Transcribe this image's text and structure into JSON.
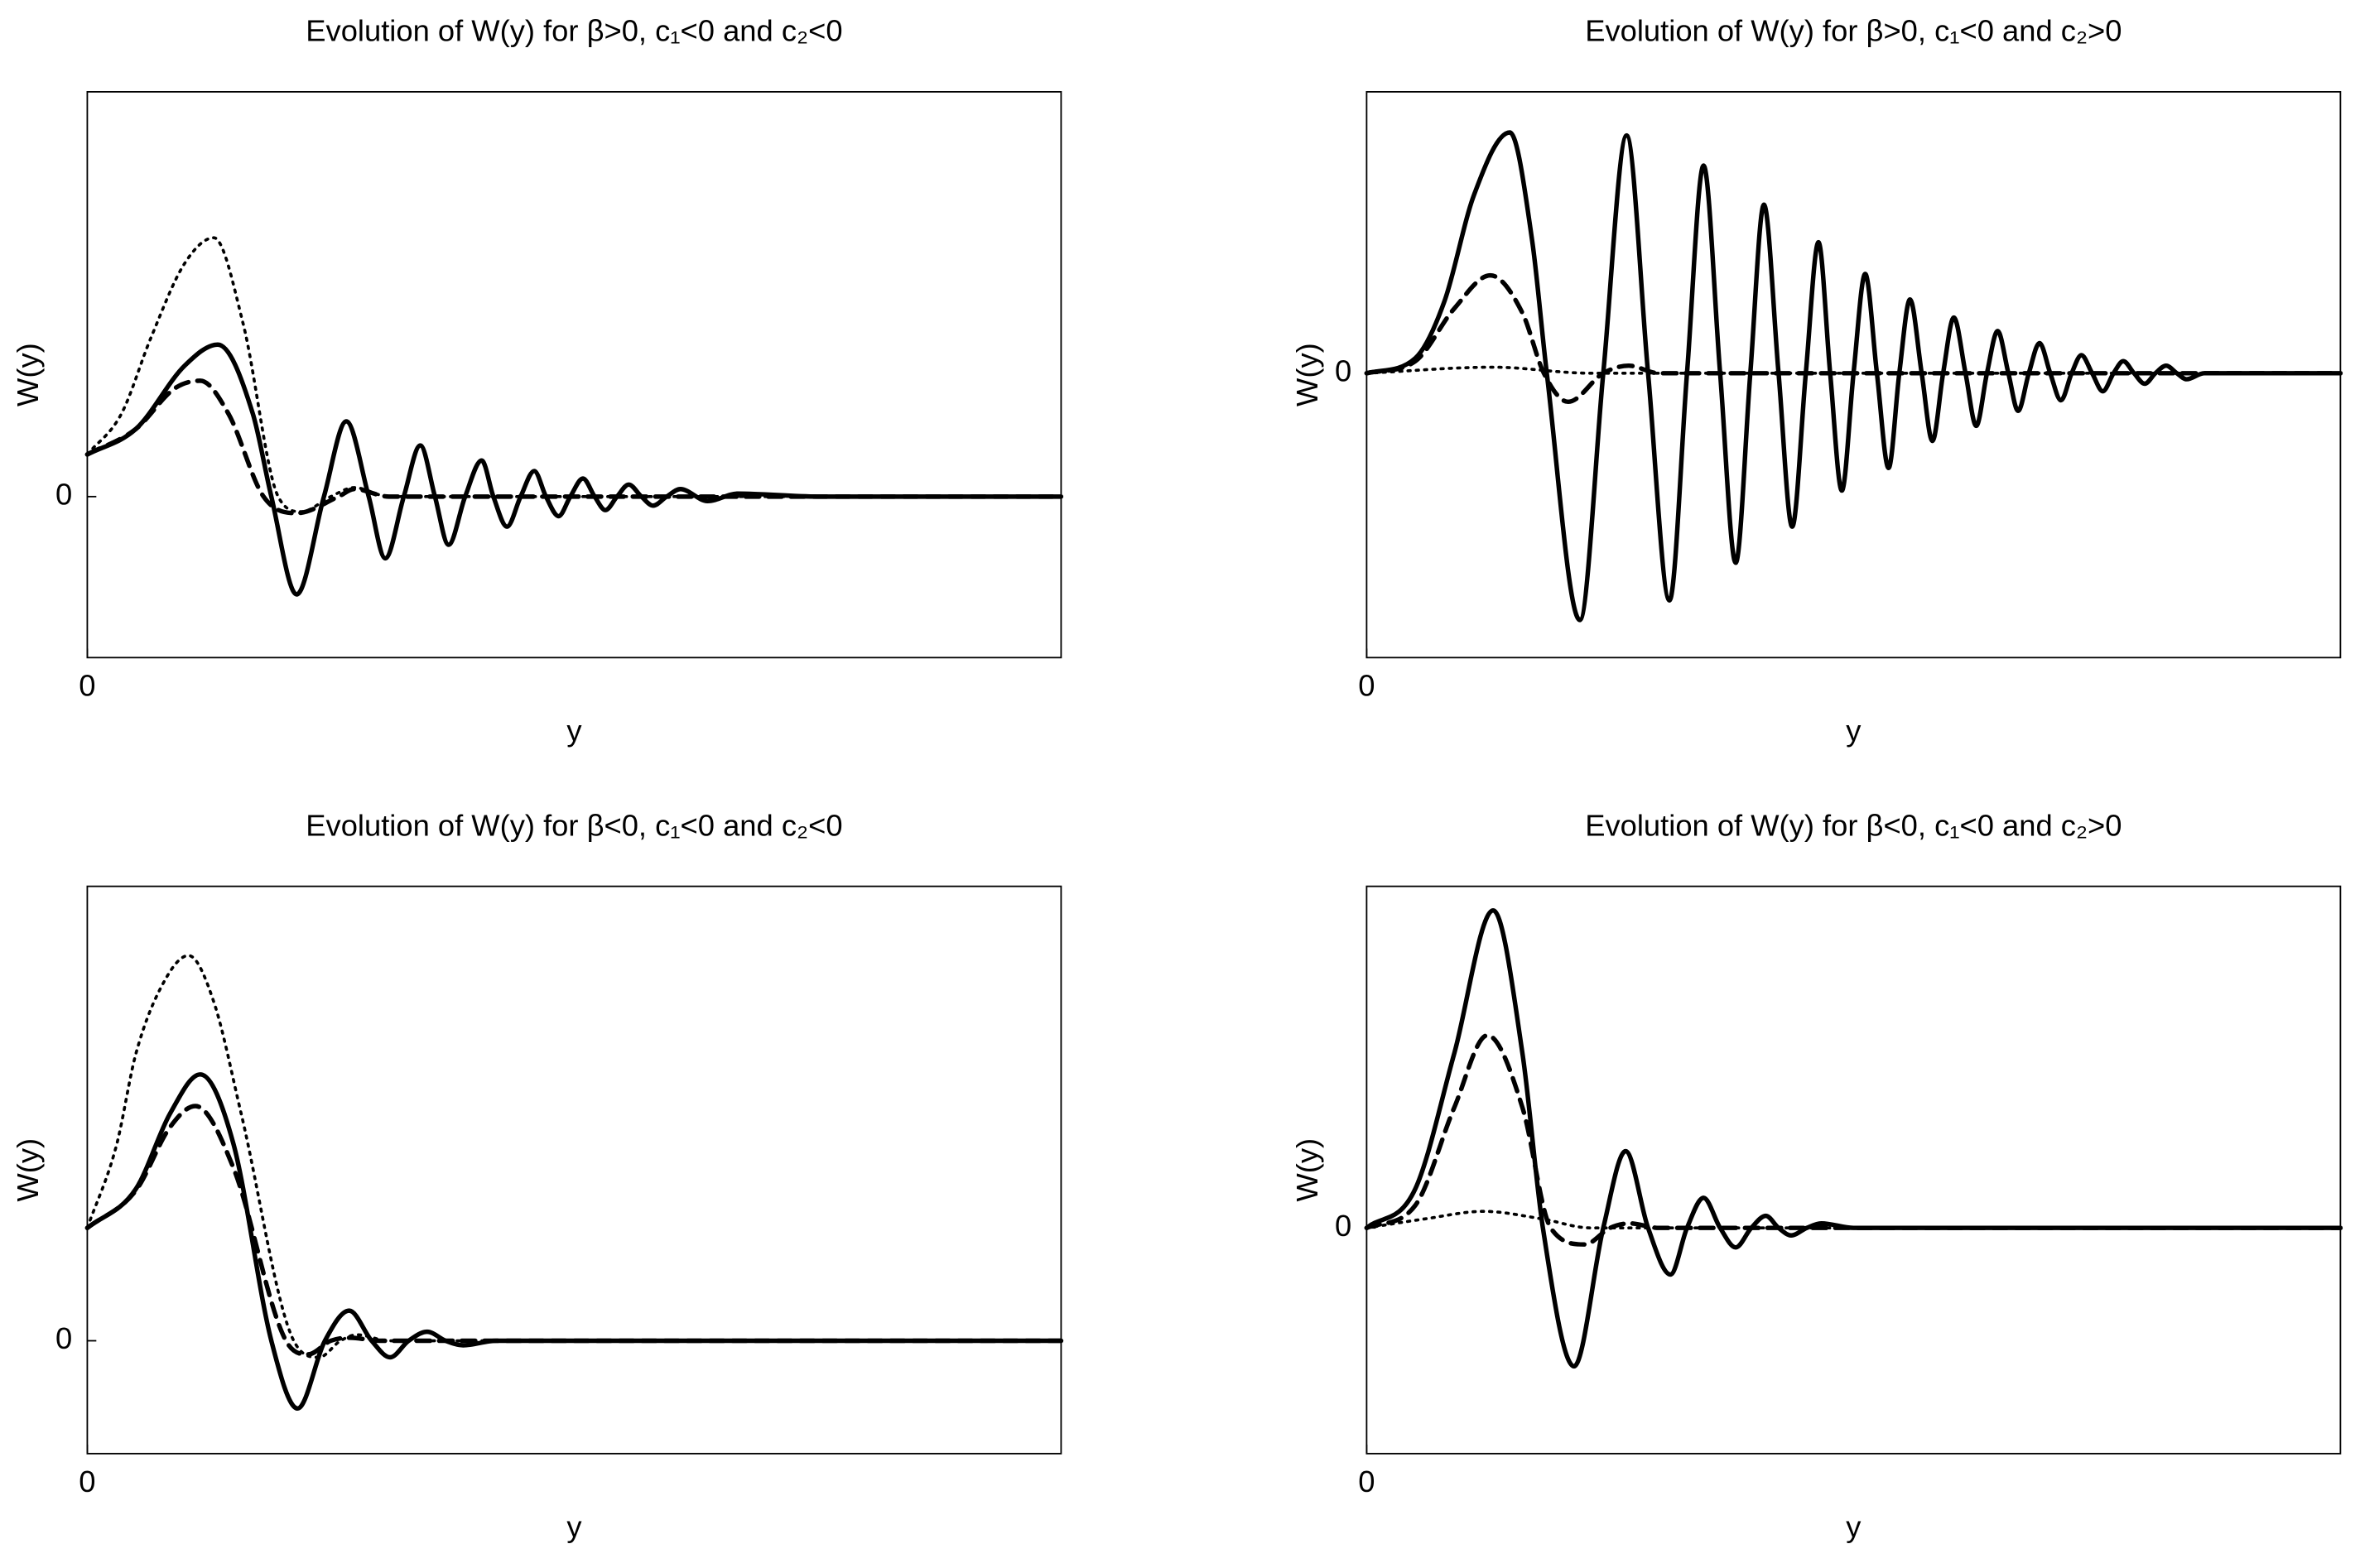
{
  "chart_data": [
    {
      "type": "line",
      "title": "Evolution of W(y) for β>0, c₁<0 and c₂<0",
      "x_label": "y",
      "y_label": "W(y)",
      "xlim": [
        0,
        10
      ],
      "xticks": [
        0
      ],
      "ylim": [
        -1.07,
        2.69
      ],
      "yticks": [
        0
      ],
      "series": [
        {
          "color": "#000000",
          "style": "solid",
          "x": [
            0,
            0.5,
            1.0,
            1.34,
            1.7,
            1.89,
            2.15,
            2.43,
            2.66,
            2.89,
            3.06,
            3.25,
            3.42,
            3.57,
            3.71,
            3.88,
            4.05,
            4.17,
            4.31,
            4.45,
            4.59,
            4.71,
            4.84,
            4.96,
            5.09,
            5.21,
            5.32,
            5.44,
            5.56,
            5.69,
            5.81,
            5.95,
            6.09,
            6.37,
            6.68,
            7.5,
            10
          ],
          "values": [
            0.28,
            0.45,
            0.87,
            1.01,
            0.55,
            0,
            -0.65,
            0,
            0.5,
            0,
            -0.41,
            0,
            0.34,
            0,
            -0.32,
            0,
            0.24,
            0,
            -0.2,
            0,
            0.17,
            0,
            -0.13,
            0,
            0.12,
            0,
            -0.09,
            0,
            0.08,
            0,
            -0.06,
            0,
            0.05,
            -0.03,
            0.02,
            0,
            0
          ]
        },
        {
          "color": "#000000",
          "style": "dashed",
          "x": [
            0,
            0.5,
            0.9,
            1.16,
            1.45,
            1.81,
            2.15,
            2.58,
            2.74,
            3.1,
            10
          ],
          "values": [
            0.28,
            0.45,
            0.72,
            0.77,
            0.55,
            0,
            -0.11,
            0,
            0.05,
            0,
            0
          ]
        },
        {
          "color": "#000000",
          "style": "dotted",
          "x": [
            0,
            0.35,
            0.65,
            1.0,
            1.3,
            1.6,
            1.96,
            2.2,
            2.5,
            2.74,
            3.1,
            10
          ],
          "values": [
            0.28,
            0.55,
            1.05,
            1.55,
            1.72,
            1.15,
            0,
            -0.1,
            0,
            0.06,
            0,
            0
          ]
        }
      ]
    },
    {
      "type": "line",
      "title": "Evolution of W(y) for β>0, c₁<0 and c₂>0",
      "x_label": "y",
      "y_label": "W(y)",
      "xlim": [
        0,
        10
      ],
      "xticks": [
        0
      ],
      "ylim": [
        -1.89,
        1.87
      ],
      "yticks": [
        0
      ],
      "series": [
        {
          "color": "#000000",
          "style": "solid",
          "x": [
            0,
            0.5,
            0.8,
            1.1,
            1.47,
            1.7,
            1.85,
            2.19,
            2.43,
            2.67,
            2.89,
            3.11,
            3.29,
            3.46,
            3.63,
            3.79,
            3.94,
            4.08,
            4.23,
            4.37,
            4.51,
            4.64,
            4.76,
            4.88,
            5.0,
            5.12,
            5.24,
            5.36,
            5.47,
            5.58,
            5.7,
            5.81,
            5.92,
            6.03,
            6.15,
            6.26,
            6.37,
            6.48,
            6.59,
            6.69,
            6.8,
            6.91,
            7.02,
            7.13,
            7.24,
            7.34,
            7.45,
            7.56,
            7.67,
            7.77,
            7.88,
            7.99,
            8.1,
            8.21,
            8.32,
            8.42,
            8.6,
            10
          ],
          "values": [
            0,
            0.1,
            0.48,
            1.18,
            1.6,
            0.88,
            0,
            -1.64,
            0,
            1.58,
            0,
            -1.51,
            0,
            1.38,
            0,
            -1.26,
            0,
            1.12,
            0,
            -1.02,
            0,
            0.87,
            0,
            -0.78,
            0,
            0.66,
            0,
            -0.63,
            0,
            0.49,
            0,
            -0.45,
            0,
            0.37,
            0,
            -0.35,
            0,
            0.28,
            0,
            -0.25,
            0,
            0.2,
            0,
            -0.18,
            0,
            0.12,
            0,
            -0.12,
            0,
            0.08,
            0,
            -0.07,
            0,
            0.05,
            0,
            -0.04,
            0,
            0
          ]
        },
        {
          "color": "#000000",
          "style": "dashed",
          "x": [
            0,
            0.5,
            0.9,
            1.27,
            1.6,
            1.82,
            2.07,
            2.43,
            2.69,
            3.0,
            10
          ],
          "values": [
            0,
            0.08,
            0.43,
            0.65,
            0.4,
            0,
            -0.19,
            0,
            0.05,
            0,
            0
          ]
        },
        {
          "color": "#000000",
          "style": "dotted",
          "x": [
            0,
            1.3,
            2.3,
            10
          ],
          "values": [
            0,
            0.04,
            0,
            0
          ]
        }
      ]
    },
    {
      "type": "line",
      "title": "Evolution of W(y) for β<0, c₁<0 and c₂<0",
      "x_label": "y",
      "y_label": "W(y)",
      "xlim": [
        0,
        10
      ],
      "xticks": [
        0
      ],
      "ylim": [
        -0.75,
        3.02
      ],
      "yticks": [
        0
      ],
      "series": [
        {
          "color": "#000000",
          "style": "solid",
          "x": [
            0,
            0.5,
            0.85,
            1.16,
            1.5,
            1.89,
            2.16,
            2.44,
            2.69,
            2.92,
            3.11,
            3.3,
            3.49,
            3.68,
            3.86,
            4.2,
            10
          ],
          "values": [
            0.75,
            1.01,
            1.51,
            1.77,
            1.31,
            0,
            -0.45,
            0,
            0.2,
            0,
            -0.11,
            0,
            0.06,
            0,
            -0.03,
            0,
            0
          ]
        },
        {
          "color": "#000000",
          "style": "dashed",
          "x": [
            0,
            0.5,
            0.85,
            1.11,
            1.5,
            2.04,
            2.27,
            2.5,
            2.7,
            3.0,
            10
          ],
          "values": [
            0.75,
            1.0,
            1.42,
            1.56,
            1.15,
            0,
            -0.09,
            0,
            0.02,
            0,
            0
          ]
        },
        {
          "color": "#000000",
          "style": "dotted",
          "x": [
            0,
            0.3,
            0.5,
            0.8,
            1.04,
            1.3,
            1.58,
            2.12,
            2.38,
            2.6,
            2.77,
            3.1,
            10
          ],
          "values": [
            0.75,
            1.3,
            1.91,
            2.4,
            2.56,
            2.25,
            1.51,
            0,
            -0.11,
            0,
            0.04,
            0,
            0
          ]
        }
      ]
    },
    {
      "type": "line",
      "title": "Evolution of W(y) for β<0, c₁<0 and c₂>0",
      "x_label": "y",
      "y_label": "W(y)",
      "xlim": [
        0,
        10
      ],
      "xticks": [
        0
      ],
      "ylim": [
        -1.5,
        2.27
      ],
      "yticks": [
        0
      ],
      "series": [
        {
          "color": "#000000",
          "style": "solid",
          "x": [
            0,
            0.5,
            0.9,
            1.3,
            1.6,
            1.81,
            2.13,
            2.43,
            2.66,
            2.89,
            3.12,
            3.29,
            3.46,
            3.63,
            3.79,
            3.95,
            4.1,
            4.23,
            4.36,
            4.52,
            4.67,
            5.0,
            10
          ],
          "values": [
            0,
            0.26,
            1.16,
            2.11,
            1.16,
            0,
            -0.92,
            0,
            0.51,
            0,
            -0.31,
            0,
            0.2,
            0,
            -0.13,
            0,
            0.08,
            0,
            -0.05,
            0,
            0.03,
            0,
            0
          ]
        },
        {
          "color": "#000000",
          "style": "dashed",
          "x": [
            0,
            0.5,
            0.9,
            1.24,
            1.6,
            1.89,
            2.24,
            2.5,
            2.7,
            3.0,
            10
          ],
          "values": [
            0,
            0.15,
            0.8,
            1.28,
            0.8,
            0,
            -0.11,
            0,
            0.03,
            0,
            0
          ]
        },
        {
          "color": "#000000",
          "style": "dotted",
          "x": [
            0,
            0.6,
            1.2,
            1.8,
            2.3,
            10
          ],
          "values": [
            0,
            0.06,
            0.11,
            0.06,
            0,
            0
          ]
        }
      ]
    }
  ]
}
